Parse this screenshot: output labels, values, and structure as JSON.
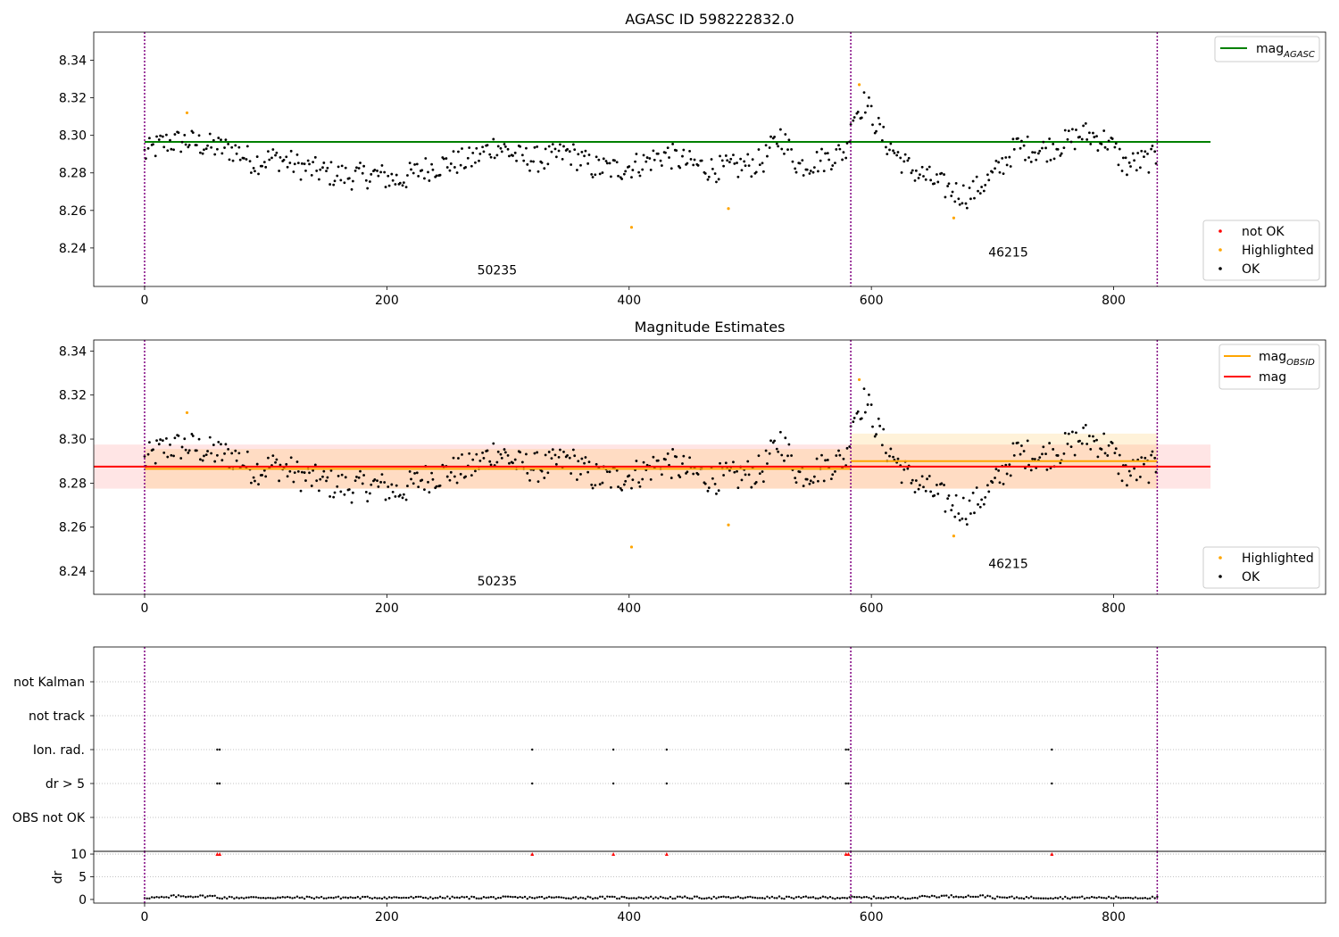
{
  "figure": {
    "background": "#ffffff"
  },
  "chart_data": [
    {
      "type": "scatter",
      "title": "AGASC ID 598222832.0",
      "xlim": [
        -42,
        975
      ],
      "ylim": [
        8.2195,
        8.355
      ],
      "xticks": [
        0,
        200,
        400,
        600,
        800
      ],
      "yticks": [
        8.24,
        8.26,
        8.28,
        8.3,
        8.32,
        8.34
      ],
      "ytick_labels": [
        "8.24",
        "8.26",
        "8.28",
        "8.30",
        "8.32",
        "8.34"
      ],
      "obsid_boundaries": [
        0,
        583,
        836
      ],
      "obsid_labels": [
        {
          "text": "50235",
          "x": 291,
          "y": 8.226
        },
        {
          "text": "46215",
          "x": 713,
          "y": 8.2355
        }
      ],
      "lines": [
        {
          "name": "mag_AGASC",
          "x": [
            0,
            880
          ],
          "y": [
            8.2965,
            8.2965
          ],
          "color": "#008000"
        }
      ],
      "legend_lines": [
        {
          "base": "mag",
          "sub": "AGASC",
          "color": "#008000"
        }
      ],
      "legend_points": [
        {
          "label": "not OK",
          "color": "#ff0000"
        },
        {
          "label": "Highlighted",
          "color": "#ffa500"
        },
        {
          "label": "OK",
          "color": "#000000"
        }
      ],
      "highlighted_points": [
        [
          35,
          8.312
        ],
        [
          402,
          8.251
        ],
        [
          482,
          8.261
        ],
        [
          590,
          8.327
        ],
        [
          668,
          8.256
        ]
      ]
    },
    {
      "type": "scatter",
      "title": "Magnitude Estimates",
      "xlim": [
        -42,
        975
      ],
      "ylim": [
        8.2295,
        8.345
      ],
      "xticks": [
        0,
        200,
        400,
        600,
        800
      ],
      "yticks": [
        8.24,
        8.26,
        8.28,
        8.3,
        8.32,
        8.34
      ],
      "ytick_labels": [
        "8.24",
        "8.26",
        "8.28",
        "8.30",
        "8.32",
        "8.34"
      ],
      "obsid_boundaries": [
        0,
        583,
        836
      ],
      "obsid_labels": [
        {
          "text": "50235",
          "x": 291,
          "y": 8.2335
        },
        {
          "text": "46215",
          "x": 713,
          "y": 8.2415
        }
      ],
      "bands": [
        {
          "x": [
            -42,
            880
          ],
          "y": [
            8.2775,
            8.2975
          ],
          "color": "#ff0000",
          "opacity": 0.1
        },
        {
          "x": [
            0,
            583
          ],
          "y": [
            8.2775,
            8.2955
          ],
          "color": "#ffa500",
          "opacity": 0.15
        },
        {
          "x": [
            583,
            836
          ],
          "y": [
            8.2775,
            8.3025
          ],
          "color": "#ffa500",
          "opacity": 0.15
        }
      ],
      "lines": [
        {
          "name": "mag_OBSID",
          "x": [
            0,
            583
          ],
          "y": [
            8.2865,
            8.2865
          ],
          "color": "#ffa500"
        },
        {
          "name": "mag_OBSID",
          "x": [
            583,
            836
          ],
          "y": [
            8.29,
            8.29
          ],
          "color": "#ffa500"
        },
        {
          "name": "mag",
          "x": [
            -42,
            880
          ],
          "y": [
            8.2875,
            8.2875
          ],
          "color": "#ff0000"
        }
      ],
      "legend_lines": [
        {
          "base": "mag",
          "sub": "OBSID",
          "color": "#ffa500"
        },
        {
          "base": "mag",
          "sub": "",
          "color": "#ff0000"
        }
      ],
      "legend_points": [
        {
          "label": "Highlighted",
          "color": "#ffa500"
        },
        {
          "label": "OK",
          "color": "#000000"
        }
      ],
      "highlighted_points": [
        [
          35,
          8.312
        ],
        [
          402,
          8.251
        ],
        [
          482,
          8.261
        ],
        [
          590,
          8.327
        ],
        [
          668,
          8.256
        ]
      ]
    },
    {
      "type": "scatter",
      "title": "",
      "xlim": [
        -42,
        975
      ],
      "categories": [
        "OBS not OK",
        "dr > 5",
        "Ion. rad.",
        "not track",
        "not Kalman"
      ],
      "flag_events": {
        "dr > 5": [
          60,
          62,
          320,
          387,
          431,
          579,
          581,
          749
        ],
        "Ion. rad.": [
          60,
          62,
          320,
          387,
          431,
          579,
          581,
          749
        ]
      },
      "obsid_boundaries": [
        0,
        583,
        836
      ]
    },
    {
      "type": "scatter",
      "title": "",
      "ylabel": "dr",
      "xlim": [
        -42,
        975
      ],
      "ylim": [
        -0.8,
        10.6
      ],
      "xticks": [
        0,
        200,
        400,
        600,
        800
      ],
      "yticks": [
        0,
        5,
        10
      ],
      "ytick_labels": [
        "0",
        "5",
        "10"
      ],
      "dashed_levels": [
        5,
        10
      ],
      "capped_points": [
        [
          60,
          10
        ],
        [
          62,
          10
        ],
        [
          320,
          10
        ],
        [
          387,
          10
        ],
        [
          431,
          10
        ],
        [
          579,
          10
        ],
        [
          581,
          10
        ],
        [
          749,
          10
        ]
      ],
      "obsid_boundaries": [
        0,
        583,
        836
      ]
    }
  ]
}
